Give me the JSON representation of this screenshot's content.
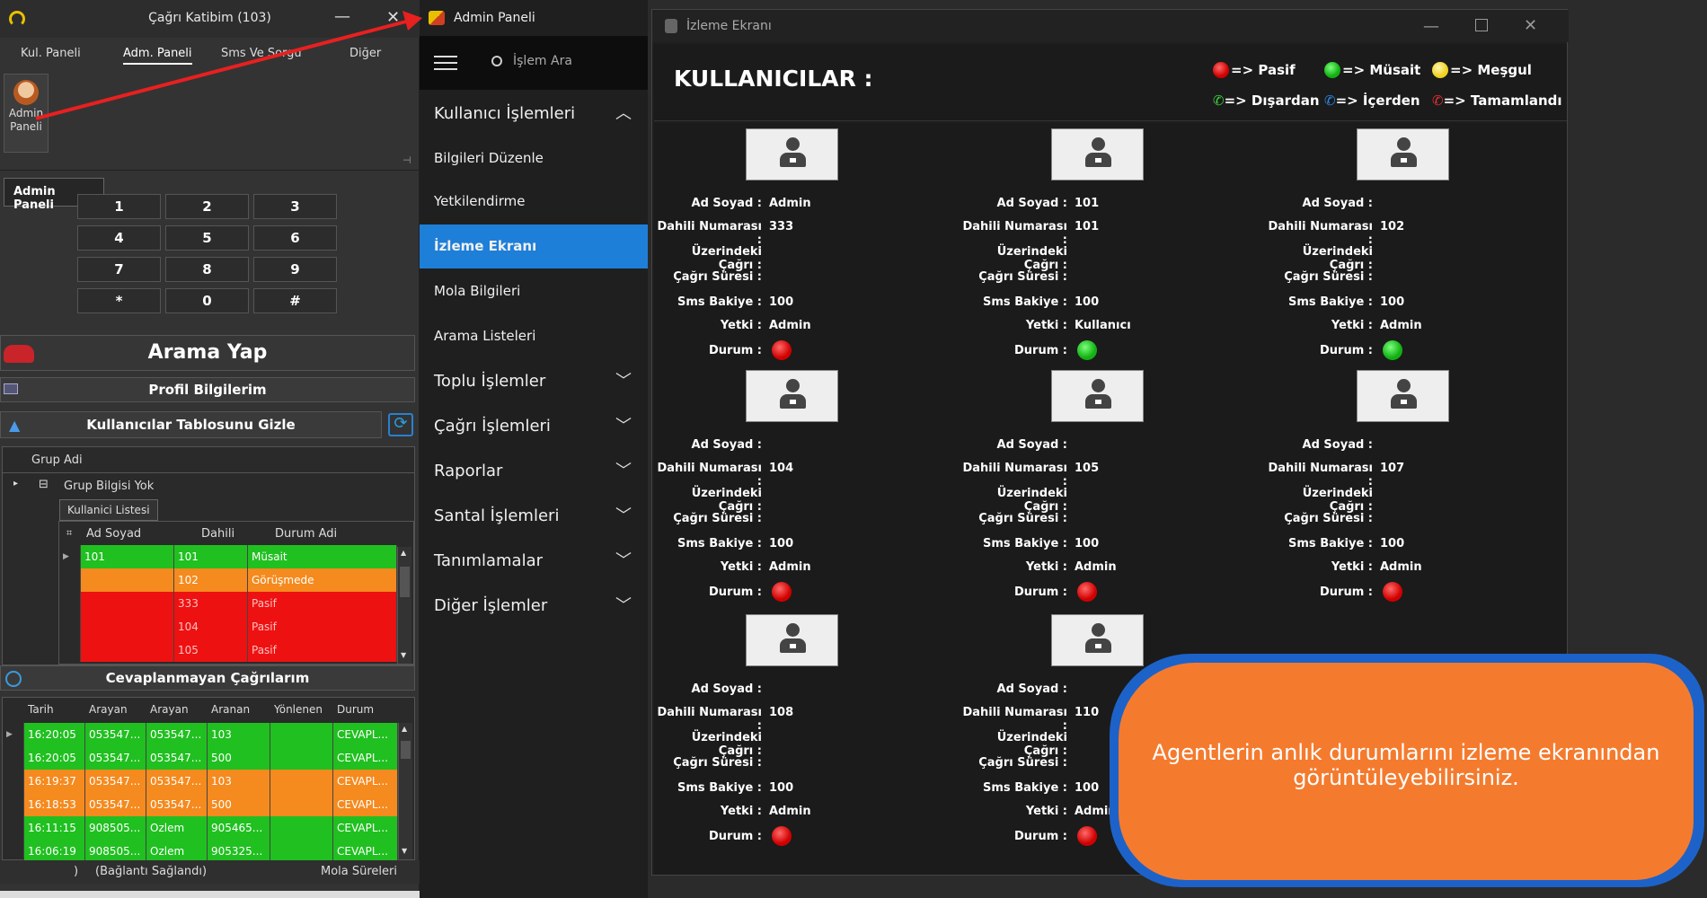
{
  "app": {
    "title": "Çağrı Katibim (103)",
    "minimize": "—",
    "close": "✕",
    "tabs": [
      "Kul. Paneli",
      "Adm. Paneli",
      "Sms Ve Sorgu",
      "Diğer"
    ],
    "ribbon_button": "Admin Paneli",
    "tooltip": "Admin Paneli",
    "pin": "⊣",
    "keypad": [
      "1",
      "2",
      "3",
      "4",
      "5",
      "6",
      "7",
      "8",
      "9",
      "*",
      "0",
      "#"
    ],
    "call_button": "Arama Yap",
    "profile_button": "Profil Bilgilerim",
    "hide_users_button": "Kullanıcılar Tablosunu Gizle",
    "group_header": "Grup Adi",
    "group_row": "Grup Bilgisi Yok",
    "user_list_tab": "Kullanici Listesi",
    "user_columns": [
      "Ad Soyad",
      "Dahili",
      "Durum Adi"
    ],
    "users": [
      {
        "name": "101",
        "dahili": "101",
        "durum": "Müsait",
        "color": "green"
      },
      {
        "name": "",
        "dahili": "102",
        "durum": "Görüşmede",
        "color": "orange"
      },
      {
        "name": "",
        "dahili": "333",
        "durum": "Pasif",
        "color": "red"
      },
      {
        "name": "",
        "dahili": "104",
        "durum": "Pasif",
        "color": "red"
      },
      {
        "name": "",
        "dahili": "105",
        "durum": "Pasif",
        "color": "red"
      }
    ],
    "missed_calls_title": "Cevaplanmayan Çağrılarım",
    "call_columns": [
      "Tarih",
      "Arayan",
      "Arayan",
      "Aranan",
      "Yönlenen",
      "Durum"
    ],
    "calls": [
      {
        "tarih": "16:20:05",
        "arayan1": "053547...",
        "arayan2": "053547...",
        "aranan": "103",
        "yon": "",
        "durum": "CEVAPL...",
        "color": "green"
      },
      {
        "tarih": "16:20:05",
        "arayan1": "053547...",
        "arayan2": "053547...",
        "aranan": "500",
        "yon": "",
        "durum": "CEVAPL...",
        "color": "green"
      },
      {
        "tarih": "16:19:37",
        "arayan1": "053547...",
        "arayan2": "053547...",
        "aranan": "103",
        "yon": "",
        "durum": "CEVAPL...",
        "color": "orange"
      },
      {
        "tarih": "16:18:53",
        "arayan1": "053547...",
        "arayan2": "053547...",
        "aranan": "500",
        "yon": "",
        "durum": "CEVAPL...",
        "color": "orange"
      },
      {
        "tarih": "16:11:15",
        "arayan1": "908505...",
        "arayan2": "Ozlem",
        "aranan": "905465...",
        "yon": "",
        "durum": "CEVAPL...",
        "color": "green"
      },
      {
        "tarih": "16:06:19",
        "arayan1": "908505...",
        "arayan2": "Ozlem",
        "aranan": "905325...",
        "yon": "",
        "durum": "CEVAPL...",
        "color": "green"
      }
    ],
    "status_paren": ")",
    "status_text": "(Bağlantı Sağlandı)",
    "status_right": "Mola Süreleri"
  },
  "nav": {
    "title": "Admin Paneli",
    "search_placeholder": "İşlem Ara",
    "items": [
      {
        "label": "Kullanıcı İşlemleri",
        "big": true,
        "chevron": "up"
      },
      {
        "label": "Bilgileri Düzenle"
      },
      {
        "label": "Yetkilendirme"
      },
      {
        "label": "İzleme Ekranı",
        "active": true
      },
      {
        "label": "Mola Bilgileri"
      },
      {
        "label": "Arama Listeleri"
      },
      {
        "label": "Toplu İşlemler",
        "big": true,
        "chevron": "down"
      },
      {
        "label": "Çağrı İşlemleri",
        "big": true,
        "chevron": "down"
      },
      {
        "label": "Raporlar",
        "big": true,
        "chevron": "down"
      },
      {
        "label": "Santal İşlemleri",
        "big": true,
        "chevron": "down"
      },
      {
        "label": "Tanımlamalar",
        "big": true,
        "chevron": "down"
      },
      {
        "label": "Diğer İşlemler",
        "big": true,
        "chevron": "down"
      }
    ]
  },
  "monitor": {
    "title": "İzleme Ekranı",
    "heading": "KULLANICILAR :",
    "legend": [
      {
        "dot": "red",
        "label": "=> Pasif"
      },
      {
        "dot": "green",
        "label": "=> Müsait"
      },
      {
        "dot": "yellow",
        "label": "=> Meşgul"
      },
      {
        "icon": "phone-green",
        "label": "=> Dışardan"
      },
      {
        "icon": "phone-blue",
        "label": "=> İçerden"
      },
      {
        "icon": "phone-red",
        "label": "=> Tamamlandı"
      }
    ],
    "field_labels": [
      "Ad Soyad :",
      "Dahili Numarası :",
      "Üzerindeki Çağrı :",
      "Çağrı Süresi :",
      "Sms Bakiye :",
      "Yetki :",
      "Durum :"
    ],
    "users": [
      {
        "ad": "Admin",
        "dahili": "333",
        "cagri": "",
        "sure": "",
        "sms": "100",
        "yetki": "Admin",
        "durum": "red"
      },
      {
        "ad": "101",
        "dahili": "101",
        "cagri": "",
        "sure": "",
        "sms": "100",
        "yetki": "Kullanıcı",
        "durum": "green"
      },
      {
        "ad": "",
        "dahili": "102",
        "cagri": "",
        "sure": "",
        "sms": "100",
        "yetki": "Admin",
        "durum": "green"
      },
      {
        "ad": "",
        "dahili": "104",
        "cagri": "",
        "sure": "",
        "sms": "100",
        "yetki": "Admin",
        "durum": "red"
      },
      {
        "ad": "",
        "dahili": "105",
        "cagri": "",
        "sure": "",
        "sms": "100",
        "yetki": "Admin",
        "durum": "red"
      },
      {
        "ad": "",
        "dahili": "107",
        "cagri": "",
        "sure": "",
        "sms": "100",
        "yetki": "Admin",
        "durum": "red"
      },
      {
        "ad": "",
        "dahili": "108",
        "cagri": "",
        "sure": "",
        "sms": "100",
        "yetki": "Admin",
        "durum": "red"
      },
      {
        "ad": "",
        "dahili": "110",
        "cagri": "",
        "sure": "",
        "sms": "100",
        "yetki": "Admin",
        "durum": "red"
      }
    ]
  },
  "callout": {
    "text": "Agentlerin anlık durumlarını izleme ekranından görüntüleyebilirsiniz."
  },
  "colors": {
    "nav_active": "#1e7fd8",
    "green": "#20c020",
    "orange": "#f58a1e",
    "red": "#ee1111",
    "callout_fill": "#f47b2e",
    "callout_border": "#1d62c8",
    "arrow": "#e82020"
  }
}
